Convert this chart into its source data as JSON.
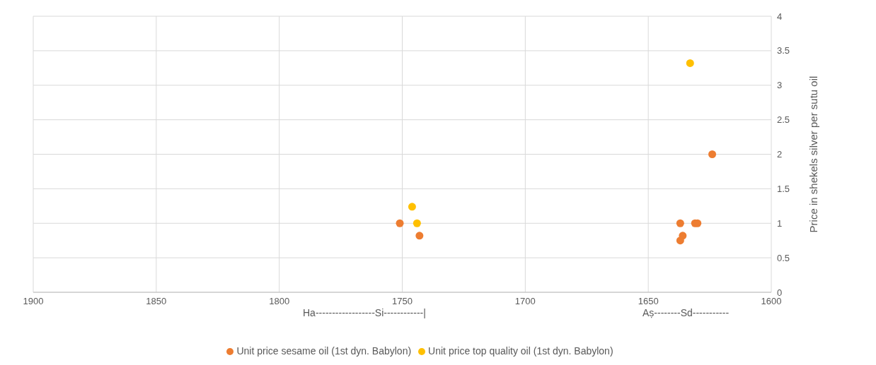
{
  "chart_data": {
    "type": "scatter",
    "ylabel": "Price in shekels silver per sutu oil",
    "xlim": [
      1900,
      1600
    ],
    "xticks": [
      1900,
      1850,
      1800,
      1750,
      1700,
      1650,
      1600
    ],
    "ylim": [
      0,
      4
    ],
    "yticks": [
      0,
      0.5,
      1,
      1.5,
      2,
      2.5,
      3,
      3.5,
      4
    ],
    "series": [
      {
        "name": "Unit price sesame oil (1st dyn. Babylon)",
        "color": "#ed7d31",
        "x": [
          1751,
          1743,
          1637,
          1636,
          1637,
          1631,
          1630,
          1624
        ],
        "values": [
          1,
          0.82,
          1,
          0.82,
          0.75,
          1,
          1,
          2
        ]
      },
      {
        "name": "Unit price top quality oil (1st dyn. Babylon)",
        "color": "#ffc000",
        "x": [
          1746,
          1744,
          1633
        ],
        "values": [
          1.24,
          1,
          3.32
        ]
      }
    ],
    "annotations": [
      "Ha------------------Si------------|",
      "Aṣ--------Sd-----------"
    ],
    "grid": true,
    "legend": "bottom",
    "marker": "circle"
  }
}
